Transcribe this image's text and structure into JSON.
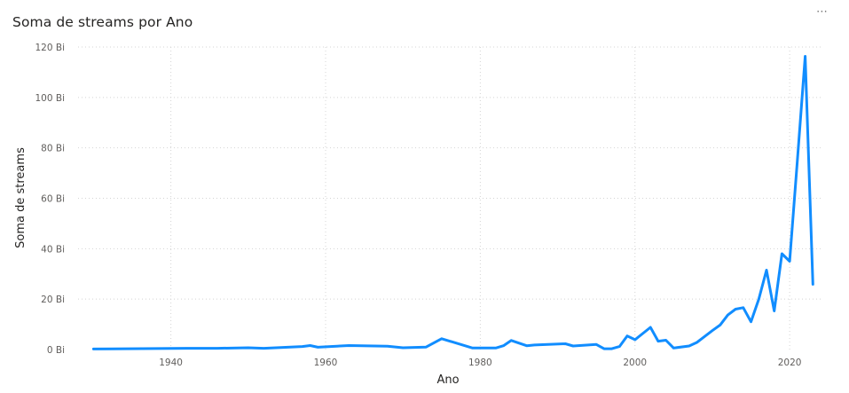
{
  "chart_data": {
    "type": "line",
    "title": "Soma de streams por Ano",
    "xlabel": "Ano",
    "ylabel": "Soma de streams",
    "xlim": [
      1928,
      2024
    ],
    "ylim": [
      0,
      120
    ],
    "x_ticks": [
      1940,
      1960,
      1980,
      2000,
      2020
    ],
    "y_ticks": [
      {
        "value": 0,
        "label": "0 Bi"
      },
      {
        "value": 20,
        "label": "20 Bi"
      },
      {
        "value": 40,
        "label": "40 Bi"
      },
      {
        "value": 60,
        "label": "60 Bi"
      },
      {
        "value": 80,
        "label": "80 Bi"
      },
      {
        "value": 100,
        "label": "100 Bi"
      },
      {
        "value": 120,
        "label": "120 Bi"
      }
    ],
    "grid": true,
    "series_color": "#118DFF",
    "series": [
      {
        "x": [
          1930,
          1942,
          1946,
          1950,
          1952,
          1957,
          1958,
          1959,
          1963,
          1968,
          1970,
          1973,
          1975,
          1979,
          1982,
          1983,
          1984,
          1986,
          1987,
          1991,
          1992,
          1995,
          1996,
          1997,
          1998,
          1999,
          2000,
          2002,
          2003,
          2004,
          2005,
          2007,
          2008,
          2010,
          2011,
          2012,
          2013,
          2014,
          2015,
          2016,
          2017,
          2018,
          2019,
          2020,
          2021,
          2022,
          2023
        ],
        "values": [
          0.2,
          0.5,
          0.5,
          0.7,
          0.5,
          1.2,
          1.6,
          0.9,
          1.6,
          1.3,
          0.7,
          1.0,
          4.3,
          0.6,
          0.6,
          1.5,
          3.6,
          1.5,
          1.8,
          2.3,
          1.4,
          2.0,
          0.3,
          0.3,
          1.2,
          5.4,
          3.9,
          8.8,
          3.3,
          3.7,
          0.6,
          1.4,
          2.8,
          7.5,
          9.7,
          13.7,
          16.0,
          16.6,
          11.0,
          20.0,
          31.5,
          15.3,
          38.0,
          35.0,
          75.0,
          116.3,
          25.9
        ]
      }
    ]
  }
}
